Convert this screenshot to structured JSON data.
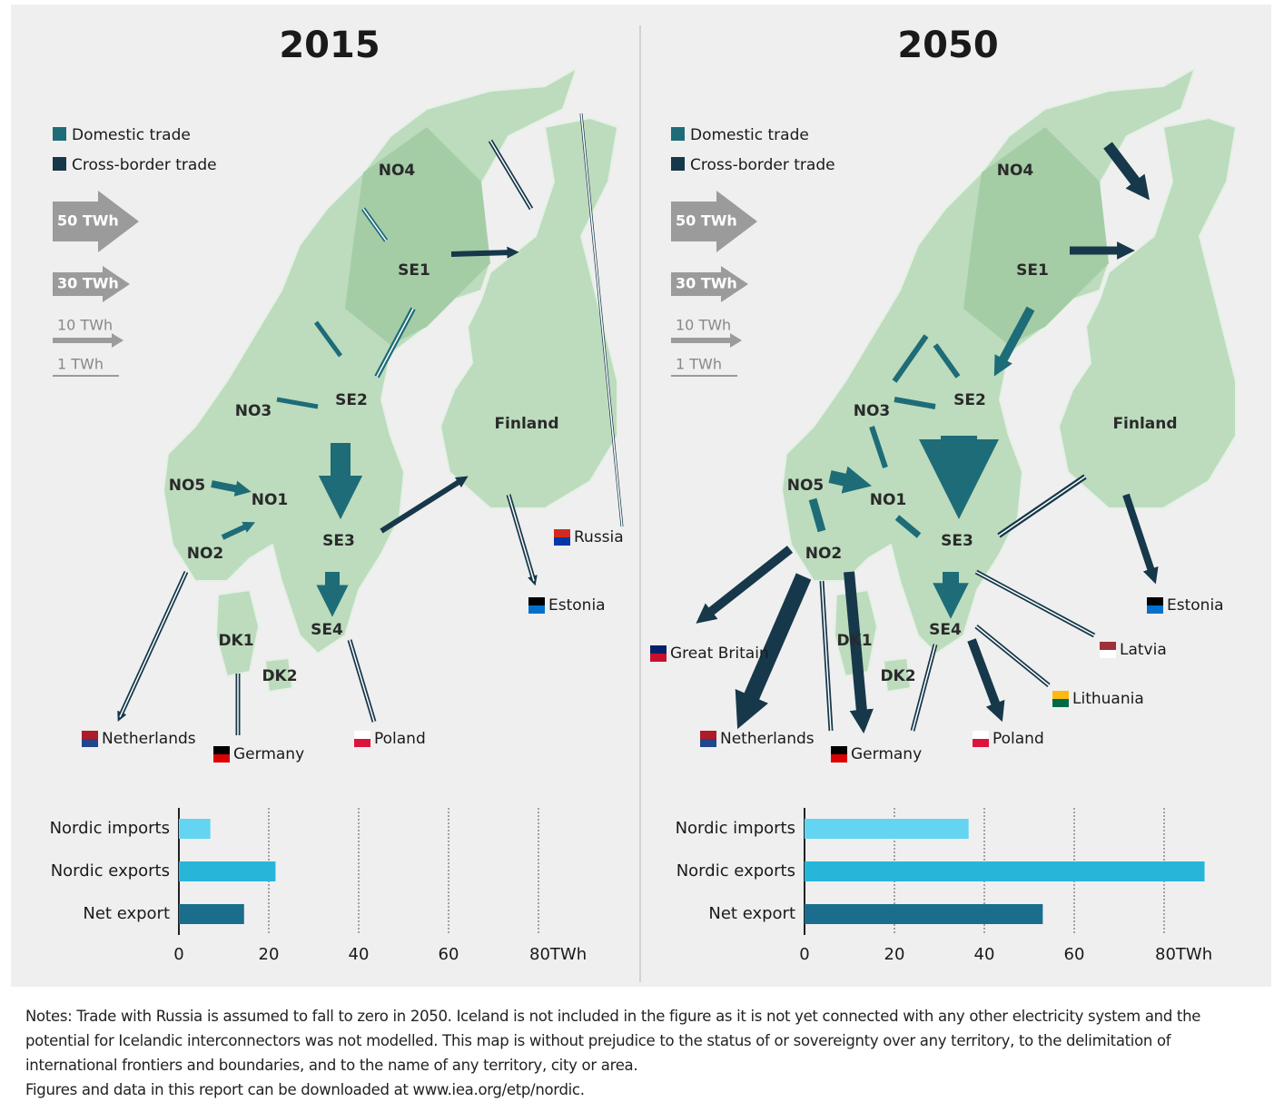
{
  "maps": [
    {
      "title": "2015",
      "legend": [
        "Domestic trade",
        "Cross-border trade"
      ],
      "scale": [
        "50 TWh",
        "30 TWh",
        "10 TWh",
        "1 TWh"
      ],
      "regions": [
        "NO4",
        "SE1",
        "NO3",
        "SE2",
        "Finland",
        "NO5",
        "NO1",
        "SE3",
        "NO2",
        "DK1",
        "SE4",
        "DK2"
      ],
      "countries": [
        "Russia",
        "Estonia",
        "Netherlands",
        "Germany",
        "Poland"
      ]
    },
    {
      "title": "2050",
      "legend": [
        "Domestic trade",
        "Cross-border trade"
      ],
      "scale": [
        "50 TWh",
        "30 TWh",
        "10 TWh",
        "1 TWh"
      ],
      "regions": [
        "NO4",
        "SE1",
        "NO3",
        "SE2",
        "Finland",
        "NO5",
        "NO1",
        "SE3",
        "NO2",
        "DK1",
        "SE4",
        "DK2"
      ],
      "countries": [
        "Estonia",
        "Great Britain",
        "Latvia",
        "Lithuania",
        "Netherlands",
        "Germany",
        "Poland"
      ]
    }
  ],
  "chart_data": [
    {
      "type": "bar",
      "categories": [
        "Nordic imports",
        "Nordic exports",
        "Net export"
      ],
      "values": [
        7,
        21.5,
        14.5
      ],
      "colors": [
        "#63d4f2",
        "#27b6da",
        "#1b6d8d"
      ],
      "xlim": [
        0,
        90
      ],
      "xticks": [
        0,
        20,
        40,
        60,
        {
          "value": 80,
          "label": "80TWh"
        }
      ],
      "grid": true
    },
    {
      "type": "bar",
      "categories": [
        "Nordic imports",
        "Nordic exports",
        "Net export"
      ],
      "values": [
        36.5,
        89,
        53
      ],
      "colors": [
        "#63d4f2",
        "#27b6da",
        "#1b6d8d"
      ],
      "xlim": [
        0,
        90
      ],
      "xticks": [
        0,
        20,
        40,
        60,
        {
          "value": 80,
          "label": "80TWh"
        }
      ],
      "grid": true
    }
  ],
  "notes": [
    "Notes: Trade with Russia is assumed to fall to zero in 2050. Iceland is not included in the figure as it is not yet connected with any other electricity system and the potential for Icelandic interconnectors was not modelled. This map is without prejudice to the status of or sovereignty over any territory, to the delimitation of international frontiers and boundaries, and to the name of any territory, city or area.",
    "Figures and data in this report can be downloaded at www.iea.org/etp/nordic."
  ]
}
